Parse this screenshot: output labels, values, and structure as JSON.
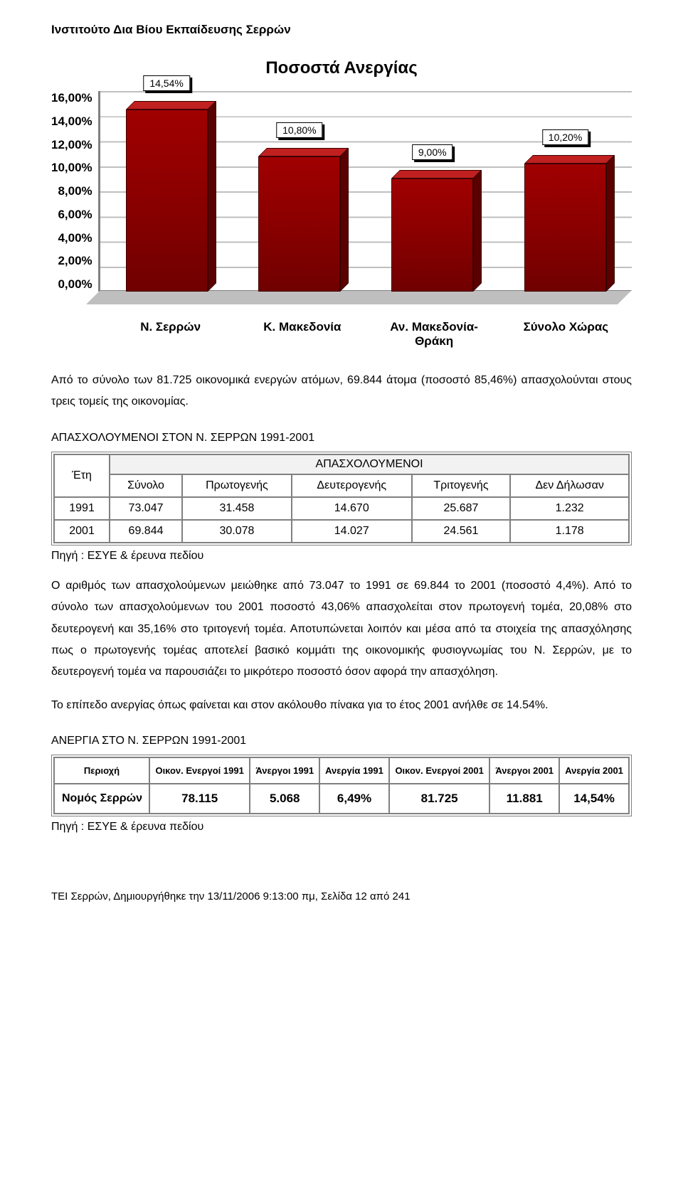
{
  "header": "Ινστιτούτο Δια Βίου Εκπαίδευσης Σερρών",
  "chart": {
    "type": "bar",
    "title": "Ποσοστά Ανεργίας",
    "y_ticks": [
      "16,00%",
      "14,00%",
      "12,00%",
      "10,00%",
      "8,00%",
      "6,00%",
      "4,00%",
      "2,00%",
      "0,00%"
    ],
    "y_max": 16.0,
    "categories": [
      "Ν. Σερρών",
      "Κ. Μακεδονία",
      "Αν. Μακεδονία-Θράκη",
      "Σύνολο Χώρας"
    ],
    "values": [
      14.54,
      10.8,
      9.0,
      10.2
    ],
    "value_labels": [
      "14,54%",
      "10,80%",
      "9,00%",
      "10,20%"
    ],
    "bar_color_front": "#8a0000",
    "bar_color_top": "#c02020",
    "bar_color_side": "#5a0000",
    "grid_color": "#bfbfbf",
    "background_color": "#ffffff",
    "title_fontsize": 24,
    "axis_fontsize": 17
  },
  "para1": "Από το σύνολο των 81.725 οικονομικά ενεργών ατόμων, 69.844 άτομα (ποσοστό 85,46%) απασχολούνται στους τρεις τομείς της οικονομίας.",
  "table1_title": "ΑΠΑΣΧΟΛΟΥΜΕΝΟΙ ΣΤΟΝ Ν. ΣΕΡΡΩΝ 1991-2001",
  "table1": {
    "super_header": "ΑΠΑΣΧΟΛΟΥΜΕΝΟΙ",
    "columns": [
      "Έτη",
      "Σύνολο",
      "Πρωτογενής",
      "Δευτερογενής",
      "Τριτογενής",
      "Δεν Δήλωσαν"
    ],
    "rows": [
      [
        "1991",
        "73.047",
        "31.458",
        "14.670",
        "25.687",
        "1.232"
      ],
      [
        "2001",
        "69.844",
        "30.078",
        "14.027",
        "24.561",
        "1.178"
      ]
    ]
  },
  "src1": "Πηγή : ΕΣΥΕ & έρευνα πεδίου",
  "para2": "Ο αριθμός των απασχολούμενων  μειώθηκε από 73.047 το 1991 σε 69.844 το 2001 (ποσοστό 4,4%). Από το σύνολο των απασχολούμενων του 2001 ποσοστό 43,06% απασχολείται στον πρωτογενή τομέα, 20,08% στο δευτερογενή και 35,16% στο τριτογενή τομέα. Αποτυπώνεται λοιπόν και μέσα από τα στοιχεία της απασχόλησης πως ο πρωτογενής τομέας αποτελεί βασικό κομμάτι της οικονομικής φυσιογνωμίας του Ν. Σερρών, με το δευτερογενή τομέα να  παρουσιάζει το μικρότερο ποσοστό όσον αφορά την απασχόληση.",
  "para3": "Το επίπεδο ανεργίας όπως φαίνεται και στον ακόλουθο πίνακα για το έτος 2001 ανήλθε σε 14.54%.",
  "table2_title": "ΑΝΕΡΓΙΑ ΣΤΟ Ν. ΣΕΡΡΩΝ 1991-2001",
  "table2": {
    "columns": [
      "Περιοχή",
      "Οικον. Ενεργοί 1991",
      "Άνεργοι 1991",
      "Ανεργία 1991",
      "Οικον. Ενεργοί 2001",
      "Άνεργοι 2001",
      "Ανεργία 2001"
    ],
    "rows": [
      [
        "Νομός Σερρών",
        "78.115",
        "5.068",
        "6,49%",
        "81.725",
        "11.881",
        "14,54%"
      ]
    ]
  },
  "src2": "Πηγή : ΕΣΥΕ & έρευνα πεδίου",
  "footer": "ΤΕΙ Σερρών,  Δημιουργήθηκε την 13/11/2006 9:13:00 πμ, Σελίδα 12 από 241"
}
